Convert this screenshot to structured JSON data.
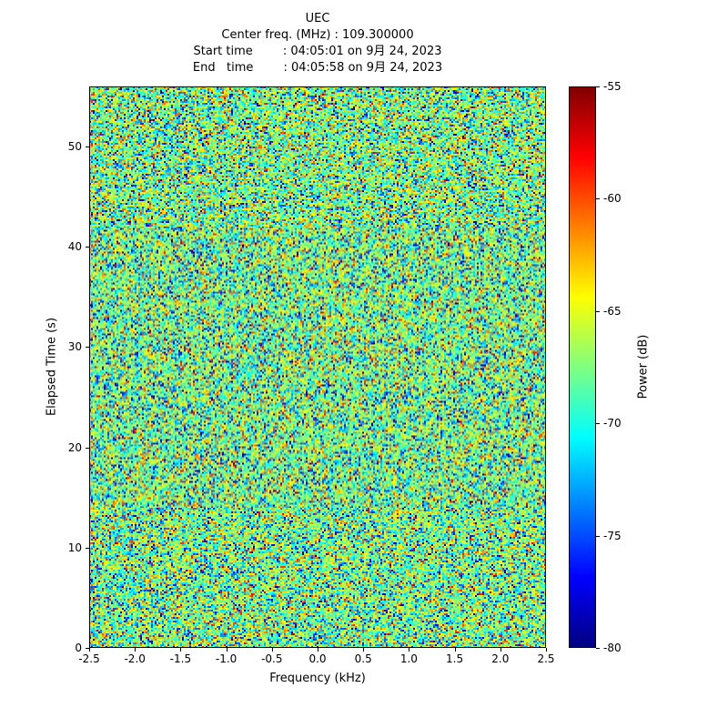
{
  "header": {
    "title": "UEC",
    "line_center_freq": "Center freq. (MHz) : 109.300000",
    "line_start": "Start time        : 04:05:01 on 9月 24, 2023",
    "line_end": "End   time        : 04:05:58 on 9月 24, 2023"
  },
  "chart_data": {
    "type": "heatmap",
    "title": "UEC",
    "subtitle_lines": [
      "Center freq. (MHz) : 109.300000",
      "Start time        : 04:05:01 on 9月 24, 2023",
      "End   time        : 04:05:58 on 9月 24, 2023"
    ],
    "xlabel": "Frequency (kHz)",
    "ylabel": "Elapsed Time (s)",
    "xlim": [
      -2.5,
      2.5
    ],
    "ylim": [
      0,
      56
    ],
    "x_tick_values": [
      -2.5,
      -2.0,
      -1.5,
      -1.0,
      -0.5,
      0.0,
      0.5,
      1.0,
      1.5,
      2.0,
      2.5
    ],
    "x_tick_labels": [
      "-2.5",
      "-2.0",
      "-1.5",
      "-1.0",
      "-0.5",
      "0.0",
      "0.5",
      "1.0",
      "1.5",
      "2.0",
      "2.5"
    ],
    "y_tick_values": [
      0,
      10,
      20,
      30,
      40,
      50
    ],
    "y_tick_labels": [
      "0",
      "10",
      "20",
      "30",
      "40",
      "50"
    ],
    "grid": false,
    "colorbar": {
      "label": "Power (dB)",
      "min": -80,
      "max": -55,
      "tick_values": [
        -55,
        -60,
        -65,
        -70,
        -75,
        -80
      ],
      "tick_labels": [
        "-55",
        "-60",
        "-65",
        "-70",
        "-75",
        "-80"
      ],
      "colormap": "jet"
    },
    "values_summary": {
      "description": "Broadband random noise spectrogram; no visible narrowband signal. Speckle of mostly cyan/green/yellow (~-72 to -62 dB) with sparse dark-blue dropouts near -80 dB and rare orange/red peaks near -58 dB.",
      "noise_mean_db": -67.5,
      "noise_std_db": 4,
      "seed": 42
    }
  }
}
